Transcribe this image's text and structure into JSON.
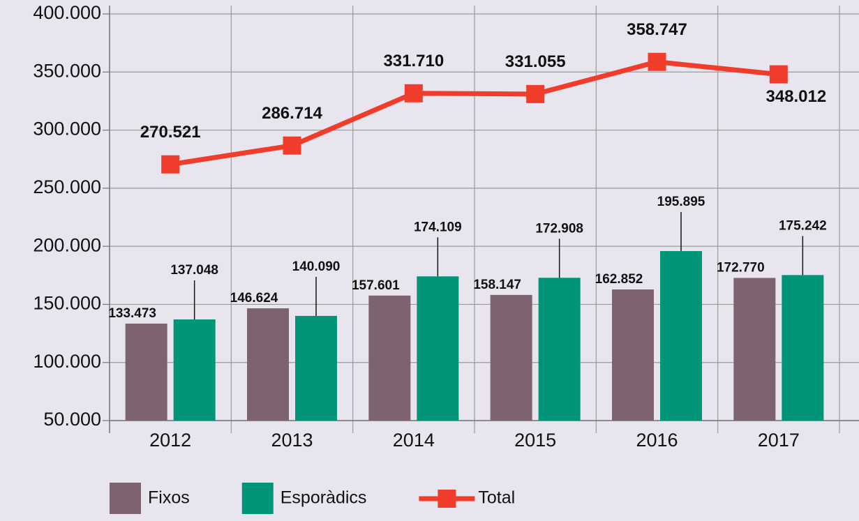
{
  "chart_data": {
    "type": "bar_line",
    "categories": [
      "2012",
      "2013",
      "2014",
      "2015",
      "2016",
      "2017"
    ],
    "series": [
      {
        "name": "Fixos",
        "type": "bar",
        "color": "#7d6370",
        "values": [
          133473,
          146624,
          157601,
          158147,
          162852,
          172770
        ],
        "value_labels": [
          "133.473",
          "146.624",
          "157.601",
          "158.147",
          "162.852",
          "172.770"
        ]
      },
      {
        "name": "Esporàdics",
        "type": "bar",
        "color": "#009478",
        "values": [
          137048,
          140090,
          174109,
          172908,
          195895,
          175242
        ],
        "value_labels": [
          "137.048",
          "140.090",
          "174.109",
          "172.908",
          "195.895",
          "175.242"
        ]
      },
      {
        "name": "Total",
        "type": "line",
        "color": "#f03c2b",
        "values": [
          270521,
          286714,
          331710,
          331055,
          358747,
          348012
        ],
        "value_labels": [
          "270.521",
          "286.714",
          "331.710",
          "331.055",
          "358.747",
          "348.012"
        ]
      }
    ],
    "ylim": [
      50000,
      400000
    ],
    "yticks": [
      {
        "value": 50000,
        "label": "50.000"
      },
      {
        "value": 100000,
        "label": "100.000"
      },
      {
        "value": 150000,
        "label": "150.000"
      },
      {
        "value": 200000,
        "label": "200.000"
      },
      {
        "value": 250000,
        "label": "250.000"
      },
      {
        "value": 300000,
        "label": "300.000"
      },
      {
        "value": 350000,
        "label": "350.000"
      },
      {
        "value": 400000,
        "label": "400.000"
      }
    ],
    "grid": true,
    "legend": "bottom"
  }
}
